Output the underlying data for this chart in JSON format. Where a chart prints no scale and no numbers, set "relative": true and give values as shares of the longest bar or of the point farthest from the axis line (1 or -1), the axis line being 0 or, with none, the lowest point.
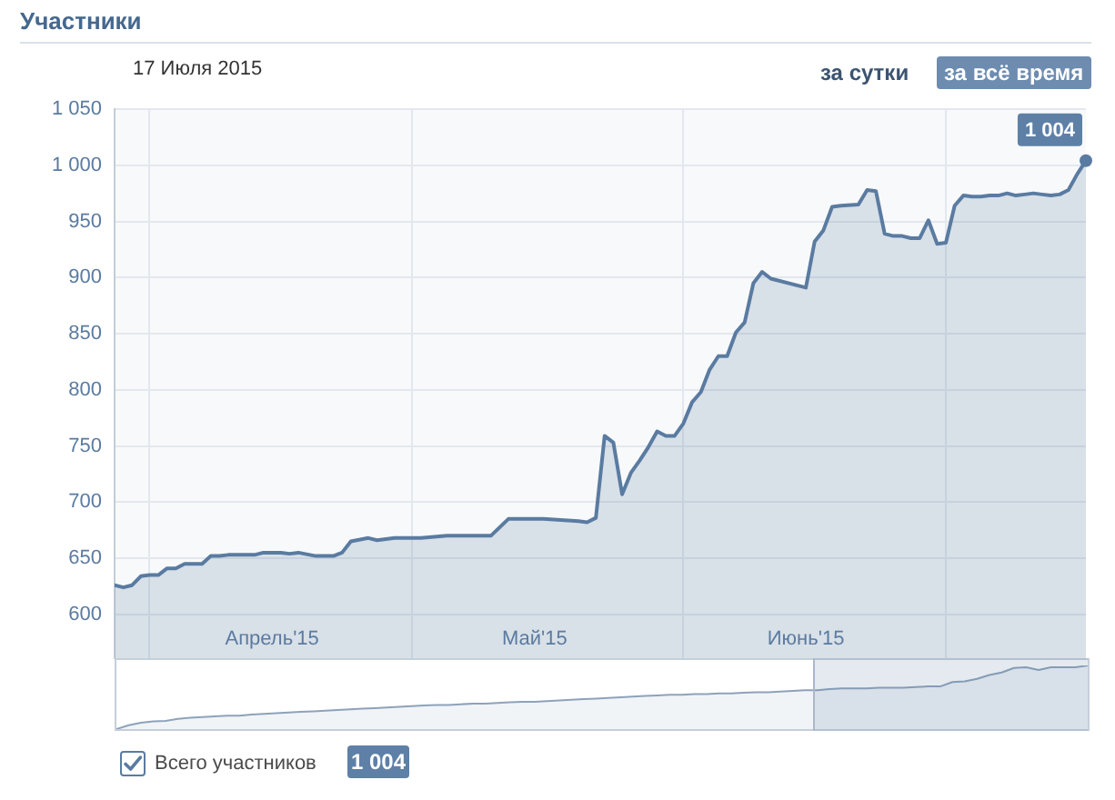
{
  "chart_data": [
    {
      "type": "area",
      "title": "Участники",
      "x": [
        "2015-03-28",
        "2015-03-29",
        "2015-03-30",
        "2015-03-31",
        "2015-04-01",
        "2015-04-02",
        "2015-04-03",
        "2015-04-04",
        "2015-04-05",
        "2015-04-07",
        "2015-04-08",
        "2015-04-09",
        "2015-04-10",
        "2015-04-13",
        "2015-04-14",
        "2015-04-16",
        "2015-04-17",
        "2015-04-18",
        "2015-04-20",
        "2015-04-22",
        "2015-04-23",
        "2015-04-24",
        "2015-04-26",
        "2015-04-27",
        "2015-04-29",
        "2015-05-02",
        "2015-05-05",
        "2015-05-10",
        "2015-05-12",
        "2015-05-14",
        "2015-05-16",
        "2015-05-18",
        "2015-05-20",
        "2015-05-21",
        "2015-05-22",
        "2015-05-23",
        "2015-05-24",
        "2015-05-25",
        "2015-05-26",
        "2015-05-27",
        "2015-05-28",
        "2015-05-29",
        "2015-05-30",
        "2015-05-31",
        "2015-06-01",
        "2015-06-02",
        "2015-06-03",
        "2015-06-04",
        "2015-06-05",
        "2015-06-06",
        "2015-06-07",
        "2015-06-08",
        "2015-06-09",
        "2015-06-10",
        "2015-06-11",
        "2015-06-15",
        "2015-06-16",
        "2015-06-17",
        "2015-06-18",
        "2015-06-19",
        "2015-06-21",
        "2015-06-22",
        "2015-06-23",
        "2015-06-24",
        "2015-06-25",
        "2015-06-26",
        "2015-06-27",
        "2015-06-28",
        "2015-06-29",
        "2015-06-30",
        "2015-07-01",
        "2015-07-02",
        "2015-07-03",
        "2015-07-04",
        "2015-07-05",
        "2015-07-06",
        "2015-07-07",
        "2015-07-08",
        "2015-07-09",
        "2015-07-10",
        "2015-07-11",
        "2015-07-12",
        "2015-07-13",
        "2015-07-14",
        "2015-07-15",
        "2015-07-16",
        "2015-07-17"
      ],
      "series": [
        {
          "name": "Всего участников",
          "color": "#5a7ba1",
          "values": [
            626,
            624,
            626,
            634,
            635,
            635,
            641,
            641,
            645,
            645,
            652,
            652,
            653,
            653,
            655,
            655,
            654,
            655,
            652,
            652,
            655,
            665,
            668,
            666,
            668,
            668,
            670,
            670,
            685,
            685,
            685,
            684,
            683,
            682,
            686,
            759,
            753,
            707,
            726,
            737,
            749,
            763,
            759,
            759,
            770,
            789,
            798,
            818,
            830,
            830,
            851,
            860,
            895,
            905,
            899,
            891,
            932,
            942,
            963,
            964,
            965,
            978,
            977,
            939,
            937,
            937,
            935,
            935,
            951,
            930,
            931,
            964,
            973,
            972,
            972,
            973,
            973,
            975,
            973,
            974,
            975,
            974,
            973,
            974,
            978,
            992,
            1004
          ]
        }
      ],
      "xlim": [
        "2015-03-28",
        "2015-07-17"
      ],
      "xticks": [
        {
          "value": "2015-04-01",
          "label": null
        },
        {
          "value": "2015-04-15",
          "label": "Апрель'15"
        },
        {
          "value": "2015-05-01",
          "label": null
        },
        {
          "value": "2015-05-15",
          "label": "Май'15"
        },
        {
          "value": "2015-06-01",
          "label": null
        },
        {
          "value": "2015-06-15",
          "label": "Июнь'15"
        },
        {
          "value": "2015-07-01",
          "label": null
        }
      ],
      "ylim": [
        561,
        1050
      ],
      "yticks": [
        {
          "value": 600,
          "label": "600"
        },
        {
          "value": 650,
          "label": "650"
        },
        {
          "value": 700,
          "label": "700"
        },
        {
          "value": 750,
          "label": "750"
        },
        {
          "value": 800,
          "label": "800"
        },
        {
          "value": 850,
          "label": "850"
        },
        {
          "value": 900,
          "label": "900"
        },
        {
          "value": 950,
          "label": "950"
        },
        {
          "value": 1000,
          "label": "1 000"
        },
        {
          "value": 1050,
          "label": "1 050"
        }
      ],
      "grid": true,
      "legend": "bottom left",
      "annotations": [
        "17 Июля 2015",
        "за сутки",
        "за всё время",
        {
          "text": "1 004",
          "x": "2015-07-17",
          "y": 1004
        },
        "1 004"
      ]
    },
    {
      "type": "area",
      "relative": true,
      "tick_labels": false,
      "color": "#8ea2ba",
      "categories": [
        null,
        null,
        null,
        null,
        null,
        null,
        null,
        null,
        null,
        null,
        null,
        null,
        null,
        null,
        null,
        null,
        null,
        null,
        null,
        null,
        null,
        null,
        null,
        null,
        null,
        null,
        null,
        null,
        null,
        null,
        null,
        null,
        null,
        null,
        null,
        null,
        null,
        null,
        null,
        null,
        null,
        null,
        null,
        null,
        null,
        null,
        null,
        null,
        null,
        null,
        null,
        null,
        null,
        null,
        null,
        null,
        null,
        null,
        null,
        null,
        null,
        null,
        null,
        null,
        null,
        null,
        null,
        null,
        null,
        null,
        null,
        null,
        null,
        null,
        null,
        null,
        null,
        null,
        null,
        null
      ],
      "values": [
        0,
        0.06,
        0.1,
        0.12,
        0.13,
        0.16,
        0.18,
        0.19,
        0.2,
        0.21,
        0.21,
        0.23,
        0.24,
        0.25,
        0.26,
        0.27,
        0.28,
        0.29,
        0.3,
        0.31,
        0.32,
        0.33,
        0.34,
        0.35,
        0.36,
        0.37,
        0.38,
        0.38,
        0.39,
        0.4,
        0.4,
        0.41,
        0.42,
        0.43,
        0.43,
        0.44,
        0.45,
        0.46,
        0.47,
        0.48,
        0.49,
        0.5,
        0.51,
        0.52,
        0.53,
        0.54,
        0.54,
        0.55,
        0.55,
        0.56,
        0.56,
        0.57,
        0.58,
        0.58,
        0.59,
        0.6,
        0.61,
        0.61,
        0.63,
        0.64,
        0.64,
        0.64,
        0.65,
        0.65,
        0.65,
        0.66,
        0.67,
        0.67,
        0.74,
        0.75,
        0.79,
        0.85,
        0.89,
        0.96,
        0.97,
        0.93,
        0.97,
        0.97,
        0.97,
        1
      ]
    }
  ]
}
